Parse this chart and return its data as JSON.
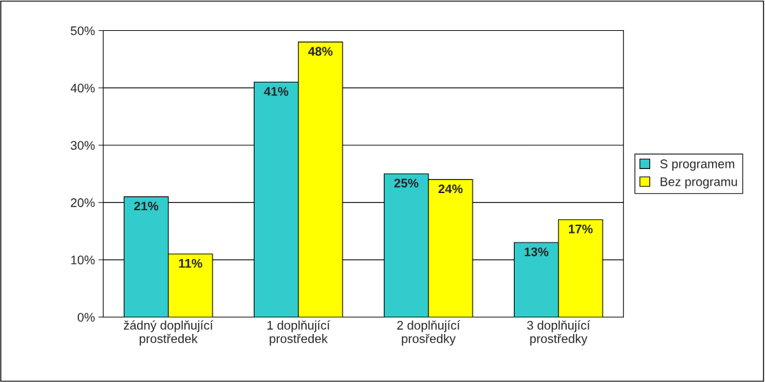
{
  "chart_data": {
    "type": "bar",
    "categories": [
      "žádný doplňující\nprostředek",
      "1 doplňující\nprostředek",
      "2 doplňující\nprosředky",
      "3 doplňující\nprostředky"
    ],
    "series": [
      {
        "name": "S programem",
        "color": "#33cccc",
        "values": [
          21,
          41,
          25,
          13
        ],
        "value_labels": [
          "21%",
          "41%",
          "25%",
          "13%"
        ]
      },
      {
        "name": "Bez programu",
        "color": "#ffff00",
        "values": [
          11,
          48,
          24,
          17
        ],
        "value_labels": [
          "11%",
          "48%",
          "24%",
          "17%"
        ]
      }
    ],
    "ylim": [
      0,
      50
    ],
    "yticks": [
      {
        "value": 0,
        "label": "0%"
      },
      {
        "value": 10,
        "label": "10%"
      },
      {
        "value": 20,
        "label": "20%"
      },
      {
        "value": 30,
        "label": "30%"
      },
      {
        "value": 40,
        "label": "40%"
      },
      {
        "value": 50,
        "label": "50%"
      }
    ],
    "grid": "y",
    "legend": "right"
  }
}
